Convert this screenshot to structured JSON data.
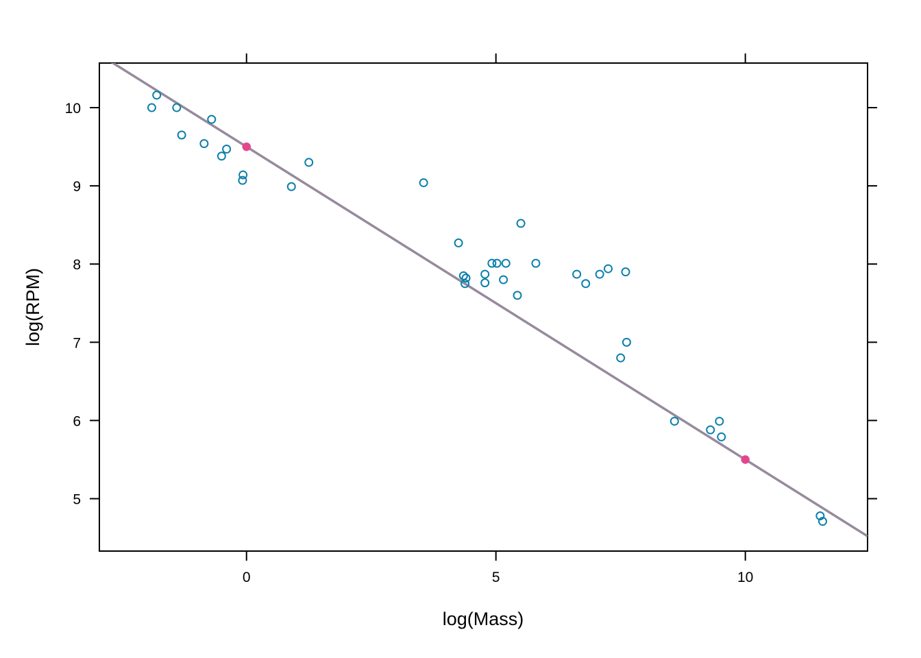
{
  "chart_data": {
    "type": "scatter",
    "title": "",
    "xlabel": "log(Mass)",
    "ylabel": "log(RPM)",
    "xlim": [
      -2.95,
      12.45
    ],
    "ylim": [
      4.33,
      10.57
    ],
    "x_ticks": [
      0,
      5,
      10
    ],
    "y_ticks": [
      5,
      6,
      7,
      8,
      9,
      10
    ],
    "grid": false,
    "legend": "none",
    "colors": {
      "points": "#0b7fab",
      "highlight": "#e3468e",
      "line": "#968a9c",
      "axis": "#000000"
    },
    "fit_line": {
      "intercept": 9.5,
      "slope": -0.4
    },
    "series": [
      {
        "type": "points",
        "x": [
          -1.9,
          -1.8,
          -1.4,
          -1.3,
          -0.7,
          -0.85,
          -0.4,
          -0.5,
          -0.07,
          -0.08,
          0.9,
          1.25,
          3.55,
          4.25,
          4.35,
          4.4,
          4.38,
          4.78,
          4.78,
          4.92,
          5.02,
          5.2,
          5.15,
          5.43,
          5.5,
          5.8,
          6.62,
          6.8,
          7.08,
          7.25,
          7.6,
          7.62,
          7.5,
          8.58,
          9.3,
          9.48,
          9.52,
          11.5,
          11.55
        ],
        "y": [
          10.0,
          10.16,
          10.0,
          9.65,
          9.85,
          9.54,
          9.47,
          9.38,
          9.14,
          9.07,
          8.99,
          9.3,
          9.04,
          8.27,
          7.85,
          7.82,
          7.75,
          7.87,
          7.76,
          8.01,
          8.01,
          8.01,
          7.8,
          7.6,
          8.52,
          8.01,
          7.87,
          7.75,
          7.87,
          7.94,
          7.9,
          7.0,
          6.8,
          5.99,
          5.88,
          5.99,
          5.79,
          4.78,
          4.71
        ]
      },
      {
        "type": "highlight",
        "x": [
          0,
          10
        ],
        "y": [
          9.5,
          5.5
        ]
      }
    ]
  }
}
